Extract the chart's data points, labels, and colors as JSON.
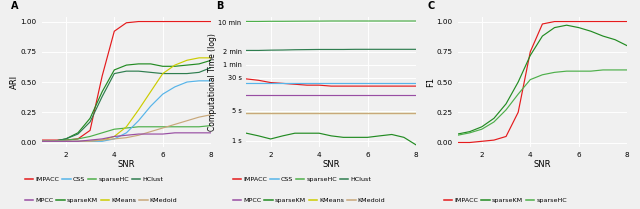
{
  "snr": [
    1,
    1.5,
    2,
    2.5,
    3,
    3.5,
    4,
    4.5,
    5,
    5.5,
    6,
    6.5,
    7,
    7.5,
    8
  ],
  "panel_A": {
    "IMPACC": [
      0.02,
      0.02,
      0.02,
      0.03,
      0.1,
      0.55,
      0.92,
      0.99,
      1.0,
      1.0,
      1.0,
      1.0,
      1.0,
      1.0,
      1.0
    ],
    "CSS": [
      0.01,
      0.01,
      0.01,
      0.01,
      0.01,
      0.01,
      0.03,
      0.08,
      0.18,
      0.3,
      0.4,
      0.46,
      0.5,
      0.51,
      0.51
    ],
    "sparseHC": [
      0.01,
      0.01,
      0.02,
      0.03,
      0.05,
      0.08,
      0.11,
      0.12,
      0.13,
      0.13,
      0.13,
      0.13,
      0.13,
      0.13,
      0.14
    ],
    "HClust": [
      0.01,
      0.01,
      0.03,
      0.07,
      0.17,
      0.38,
      0.57,
      0.59,
      0.59,
      0.58,
      0.57,
      0.57,
      0.57,
      0.58,
      0.62
    ],
    "MPCC": [
      0.01,
      0.01,
      0.01,
      0.01,
      0.02,
      0.03,
      0.05,
      0.06,
      0.07,
      0.07,
      0.07,
      0.08,
      0.08,
      0.08,
      0.08
    ],
    "sparseKM": [
      0.01,
      0.01,
      0.03,
      0.08,
      0.2,
      0.42,
      0.6,
      0.64,
      0.65,
      0.65,
      0.63,
      0.63,
      0.64,
      0.65,
      0.68
    ],
    "KMeans": [
      0.01,
      0.01,
      0.01,
      0.01,
      0.01,
      0.02,
      0.05,
      0.13,
      0.27,
      0.42,
      0.57,
      0.64,
      0.68,
      0.7,
      0.7
    ],
    "KMedoid": [
      0.01,
      0.01,
      0.01,
      0.01,
      0.01,
      0.02,
      0.03,
      0.04,
      0.06,
      0.09,
      0.12,
      0.15,
      0.18,
      0.21,
      0.23
    ]
  },
  "panel_B": {
    "IMPACC": [
      28,
      26,
      23,
      22,
      21,
      20,
      20,
      19,
      19,
      19,
      19,
      19,
      19,
      19,
      19
    ],
    "CSS": [
      22,
      22,
      22,
      22,
      22,
      22,
      22,
      22,
      22,
      22,
      22,
      22,
      22,
      22,
      22
    ],
    "sparseHC": [
      620,
      620,
      625,
      625,
      628,
      630,
      632,
      635,
      635,
      635,
      635,
      635,
      635,
      635,
      635
    ],
    "HClust": [
      130,
      130,
      132,
      133,
      135,
      136,
      137,
      137,
      137,
      138,
      138,
      138,
      138,
      138,
      138
    ],
    "MPCC": [
      12,
      12,
      12,
      12,
      12,
      12,
      12,
      12,
      12,
      12,
      12,
      12,
      12,
      12,
      12
    ],
    "sparseKM": [
      1.5,
      1.3,
      1.1,
      1.3,
      1.5,
      1.5,
      1.5,
      1.3,
      1.2,
      1.2,
      1.2,
      1.3,
      1.4,
      1.2,
      0.8
    ],
    "KMeans": [
      4.5,
      4.5,
      4.5,
      4.5,
      4.5,
      4.5,
      4.5,
      4.5,
      4.5,
      4.5,
      4.5,
      4.5,
      4.5,
      4.5,
      4.5
    ],
    "KMedoid": [
      4.5,
      4.5,
      4.5,
      4.5,
      4.5,
      4.5,
      4.5,
      4.5,
      4.5,
      4.5,
      4.5,
      4.5,
      4.5,
      4.5,
      4.5
    ]
  },
  "panel_C": {
    "IMPACC": [
      0.0,
      0.0,
      0.01,
      0.02,
      0.05,
      0.25,
      0.75,
      0.98,
      1.0,
      1.0,
      1.0,
      1.0,
      1.0,
      1.0,
      1.0
    ],
    "sparseKM": [
      0.07,
      0.09,
      0.13,
      0.2,
      0.32,
      0.5,
      0.72,
      0.88,
      0.95,
      0.97,
      0.95,
      0.92,
      0.88,
      0.85,
      0.8
    ],
    "sparseHC": [
      0.06,
      0.08,
      0.11,
      0.17,
      0.27,
      0.4,
      0.52,
      0.56,
      0.58,
      0.59,
      0.59,
      0.59,
      0.6,
      0.6,
      0.6
    ]
  },
  "colors": {
    "IMPACC": "#e41a1c",
    "CSS": "#56b4e9",
    "sparseHC": "#4daf4a",
    "HClust": "#2e7d4f",
    "MPCC": "#984ea3",
    "sparseKM": "#228B22",
    "KMeans": "#cccc00",
    "KMedoid": "#c8a87a"
  },
  "bg_color": "#f0f0f0",
  "grid_color": "#ffffff",
  "lw": 0.85,
  "yticks_B_secs": [
    1,
    5,
    30,
    60,
    120,
    600
  ],
  "yticks_B_labels": [
    "1 s",
    "5 s",
    "30 s",
    "1 min",
    "2 min",
    "10 min"
  ],
  "legend_row1": [
    "IMPACC",
    "CSS",
    "sparseHC",
    "HClust"
  ],
  "legend_row2": [
    "MPCC",
    "sparseKM",
    "KMeans",
    "KMedoid"
  ],
  "legend_C": [
    "IMPACC",
    "sparseKM",
    "sparseHC"
  ]
}
